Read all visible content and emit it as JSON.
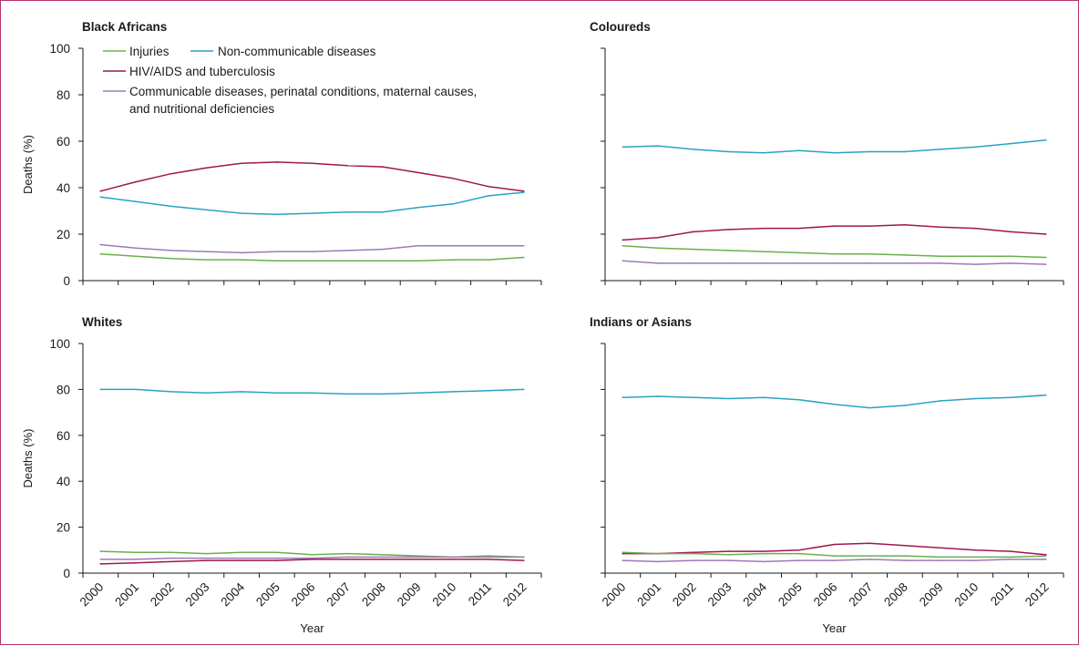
{
  "colors": {
    "injuries": "#6ab04c",
    "ncd": "#2aa3c2",
    "hiv_tb": "#a0174f",
    "communicable": "#9b7ab7",
    "frame": "#b5336d"
  },
  "legend": {
    "injuries": "Injuries",
    "ncd": "Non-communicable diseases",
    "hiv_tb": "HIV/AIDS and tuberculosis",
    "communicable_line1": "Communicable diseases, perinatal conditions, maternal causes,",
    "communicable_line2": "and nutritional deficiencies"
  },
  "chart_data": [
    {
      "type": "line",
      "title": "Black Africans",
      "xlabel": "",
      "ylabel": "Deaths (%)",
      "ylim": [
        0,
        100
      ],
      "yticks": [
        "0",
        "20",
        "40",
        "60",
        "80",
        "100"
      ],
      "x": [
        "2000",
        "2001",
        "2002",
        "2003",
        "2004",
        "2005",
        "2006",
        "2007",
        "2008",
        "2009",
        "2010",
        "2011",
        "2012"
      ],
      "series": [
        {
          "key": "ncd",
          "name": "Non-communicable diseases",
          "values": [
            36,
            34,
            32,
            30.5,
            29,
            28.5,
            29,
            29.5,
            29.5,
            31.5,
            33,
            36.5,
            38
          ]
        },
        {
          "key": "hiv_tb",
          "name": "HIV/AIDS and tuberculosis",
          "values": [
            38.5,
            42.5,
            46,
            48.5,
            50.5,
            51,
            50.5,
            49.5,
            49,
            46.5,
            44,
            40.5,
            38.5
          ]
        },
        {
          "key": "communicable",
          "name": "Communicable diseases, perinatal conditions, maternal causes, and nutritional deficiencies",
          "values": [
            15.5,
            14,
            13,
            12.5,
            12,
            12.5,
            12.5,
            13,
            13.5,
            15,
            15,
            15,
            15
          ]
        },
        {
          "key": "injuries",
          "name": "Injuries",
          "values": [
            11.5,
            10.5,
            9.5,
            9,
            9,
            8.5,
            8.5,
            8.5,
            8.5,
            8.5,
            9,
            9,
            10
          ]
        }
      ]
    },
    {
      "type": "line",
      "title": "Coloureds",
      "xlabel": "",
      "ylabel": "",
      "ylim": [
        0,
        100
      ],
      "yticks": [
        "0",
        "20",
        "40",
        "60",
        "80",
        "100"
      ],
      "x": [
        "2000",
        "2001",
        "2002",
        "2003",
        "2004",
        "2005",
        "2006",
        "2007",
        "2008",
        "2009",
        "2010",
        "2011",
        "2012"
      ],
      "series": [
        {
          "key": "ncd",
          "name": "Non-communicable diseases",
          "values": [
            57.5,
            58,
            56.5,
            55.5,
            55,
            56,
            55,
            55.5,
            55.5,
            56.5,
            57.5,
            59,
            60.5
          ]
        },
        {
          "key": "hiv_tb",
          "name": "HIV/AIDS and tuberculosis",
          "values": [
            17.5,
            18.5,
            21,
            22,
            22.5,
            22.5,
            23.5,
            23.5,
            24,
            23,
            22.5,
            21,
            20
          ]
        },
        {
          "key": "injuries",
          "name": "Injuries",
          "values": [
            15,
            14,
            13.5,
            13,
            12.5,
            12,
            11.5,
            11.5,
            11,
            10.5,
            10.5,
            10.5,
            10
          ]
        },
        {
          "key": "communicable",
          "name": "Communicable diseases, perinatal conditions, maternal causes, and nutritional deficiencies",
          "values": [
            8.5,
            7.5,
            7.5,
            7.5,
            7.5,
            7.5,
            7.5,
            7.5,
            7.5,
            7.5,
            7,
            7.5,
            7
          ]
        }
      ]
    },
    {
      "type": "line",
      "title": "Whites",
      "xlabel": "Year",
      "ylabel": "Deaths (%)",
      "ylim": [
        0,
        100
      ],
      "yticks": [
        "0",
        "20",
        "40",
        "60",
        "80",
        "100"
      ],
      "x": [
        "2000",
        "2001",
        "2002",
        "2003",
        "2004",
        "2005",
        "2006",
        "2007",
        "2008",
        "2009",
        "2010",
        "2011",
        "2012"
      ],
      "series": [
        {
          "key": "ncd",
          "name": "Non-communicable diseases",
          "values": [
            80,
            80,
            79,
            78.5,
            79,
            78.5,
            78.5,
            78,
            78,
            78.5,
            79,
            79.5,
            80
          ]
        },
        {
          "key": "injuries",
          "name": "Injuries",
          "values": [
            9.5,
            9,
            9,
            8.5,
            9,
            9,
            8,
            8.5,
            8,
            7.5,
            7,
            7.5,
            7
          ]
        },
        {
          "key": "communicable",
          "name": "Communicable diseases, perinatal conditions, maternal causes, and nutritional deficiencies",
          "values": [
            6,
            6,
            6.5,
            6.5,
            6.5,
            6.5,
            6.5,
            7,
            7,
            7,
            7,
            7,
            7
          ]
        },
        {
          "key": "hiv_tb",
          "name": "HIV/AIDS and tuberculosis",
          "values": [
            4,
            4.5,
            5,
            5.5,
            5.5,
            5.5,
            6,
            6,
            6,
            6,
            6,
            6,
            5.5
          ]
        }
      ]
    },
    {
      "type": "line",
      "title": "Indians or Asians",
      "xlabel": "Year",
      "ylabel": "",
      "ylim": [
        0,
        100
      ],
      "yticks": [
        "0",
        "20",
        "40",
        "60",
        "80",
        "100"
      ],
      "x": [
        "2000",
        "2001",
        "2002",
        "2003",
        "2004",
        "2005",
        "2006",
        "2007",
        "2008",
        "2009",
        "2010",
        "2011",
        "2012"
      ],
      "series": [
        {
          "key": "ncd",
          "name": "Non-communicable diseases",
          "values": [
            76.5,
            77,
            76.5,
            76,
            76.5,
            75.5,
            73.5,
            72,
            73,
            75,
            76,
            76.5,
            77.5
          ]
        },
        {
          "key": "hiv_tb",
          "name": "HIV/AIDS and tuberculosis",
          "values": [
            8.5,
            8.5,
            9,
            9.5,
            9.5,
            10,
            12.5,
            13,
            12,
            11,
            10,
            9.5,
            8
          ]
        },
        {
          "key": "injuries",
          "name": "Injuries",
          "values": [
            9,
            8.5,
            8.5,
            8,
            8.5,
            8.5,
            7.5,
            7.5,
            7.5,
            7,
            7,
            7,
            7.5
          ]
        },
        {
          "key": "communicable",
          "name": "Communicable diseases, perinatal conditions, maternal causes, and nutritional deficiencies",
          "values": [
            5.5,
            5,
            5.5,
            5.5,
            5,
            5.5,
            5.5,
            6,
            5.5,
            5.5,
            5.5,
            6,
            6
          ]
        }
      ]
    }
  ]
}
